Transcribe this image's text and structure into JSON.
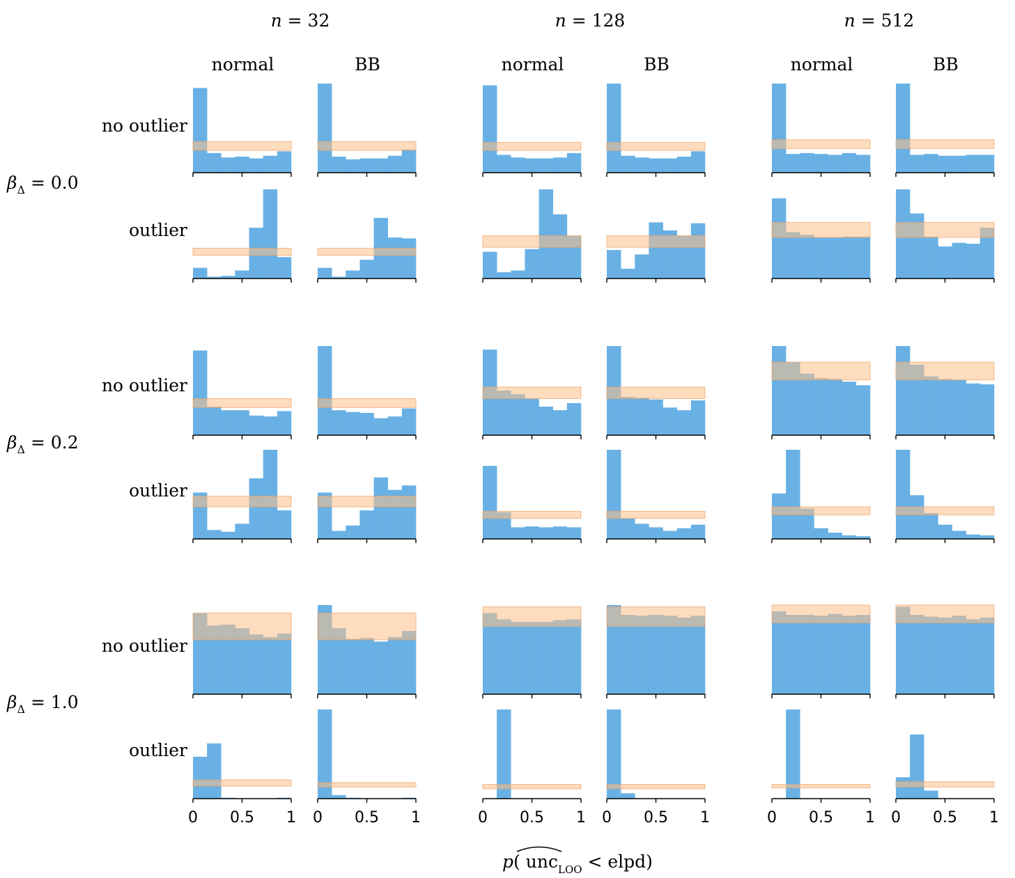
{
  "chart_data": {
    "type": "bar",
    "xlabel": {
      "p": "p",
      "unc": "unc",
      "sub": "LOO",
      "rest": " < elpd)"
    },
    "x_ticks": [
      "0",
      "0.5",
      "1"
    ],
    "xlim": [
      0,
      1
    ],
    "bins": 7,
    "n_labels": [
      {
        "n": "n",
        "eq": " = 32"
      },
      {
        "n": "n",
        "eq": " = 128"
      },
      {
        "n": "n",
        "eq": " = 512"
      }
    ],
    "method_labels": [
      "normal",
      "BB",
      "normal",
      "BB",
      "normal",
      "BB"
    ],
    "beta_labels": [
      {
        "beta": "β",
        "sub": "Δ",
        "eq": " = 0.0"
      },
      {
        "beta": "β",
        "sub": "Δ",
        "eq": " = 0.2"
      },
      {
        "beta": "β",
        "sub": "Δ",
        "eq": " = 1.0"
      }
    ],
    "row_labels": [
      "no outlier",
      "outlier",
      "no outlier",
      "outlier",
      "no outlier",
      "outlier"
    ],
    "colors": {
      "bar": "#4fa3e1",
      "band": "#fdbf88",
      "axis": "#000000"
    },
    "y_max": 1,
    "panels": [
      [
        {
          "values": [
            0.95,
            0.22,
            0.17,
            0.18,
            0.16,
            0.19,
            0.24
          ],
          "band": [
            0.25,
            0.35
          ]
        },
        {
          "values": [
            1.0,
            0.18,
            0.15,
            0.16,
            0.16,
            0.19,
            0.26
          ],
          "band": [
            0.25,
            0.35
          ]
        },
        {
          "values": [
            0.98,
            0.2,
            0.17,
            0.16,
            0.16,
            0.17,
            0.22
          ],
          "band": [
            0.25,
            0.34
          ]
        },
        {
          "values": [
            1.0,
            0.19,
            0.17,
            0.16,
            0.16,
            0.18,
            0.24
          ],
          "band": [
            0.25,
            0.34
          ]
        },
        {
          "values": [
            1.0,
            0.21,
            0.22,
            0.21,
            0.2,
            0.22,
            0.2
          ],
          "band": [
            0.27,
            0.37
          ]
        },
        {
          "values": [
            1.0,
            0.2,
            0.21,
            0.19,
            0.19,
            0.2,
            0.2
          ],
          "band": [
            0.27,
            0.37
          ]
        }
      ],
      [
        {
          "values": [
            0.12,
            0.02,
            0.03,
            0.09,
            0.57,
            1.0,
            0.24
          ],
          "band": [
            0.26,
            0.34
          ]
        },
        {
          "values": [
            0.12,
            0.02,
            0.09,
            0.21,
            0.68,
            0.46,
            0.45
          ],
          "band": [
            0.26,
            0.34
          ]
        },
        {
          "values": [
            0.3,
            0.07,
            0.09,
            0.33,
            1.0,
            0.72,
            0.48
          ],
          "band": [
            0.35,
            0.48
          ]
        },
        {
          "values": [
            0.32,
            0.11,
            0.27,
            0.63,
            0.54,
            0.48,
            0.62
          ],
          "band": [
            0.35,
            0.48
          ]
        },
        {
          "values": [
            0.9,
            0.52,
            0.49,
            0.46,
            0.46,
            0.47,
            0.47
          ],
          "band": [
            0.46,
            0.63
          ]
        },
        {
          "values": [
            1.0,
            0.73,
            0.47,
            0.36,
            0.4,
            0.39,
            0.57
          ],
          "band": [
            0.46,
            0.63
          ]
        }
      ],
      [
        {
          "values": [
            0.95,
            0.32,
            0.28,
            0.28,
            0.22,
            0.21,
            0.27
          ],
          "band": [
            0.31,
            0.41
          ]
        },
        {
          "values": [
            1.0,
            0.28,
            0.26,
            0.25,
            0.19,
            0.21,
            0.3
          ],
          "band": [
            0.31,
            0.41
          ]
        },
        {
          "values": [
            0.96,
            0.5,
            0.46,
            0.41,
            0.32,
            0.28,
            0.36
          ],
          "band": [
            0.41,
            0.54
          ]
        },
        {
          "values": [
            1.0,
            0.43,
            0.42,
            0.4,
            0.31,
            0.28,
            0.39
          ],
          "band": [
            0.41,
            0.54
          ]
        },
        {
          "values": [
            1.0,
            0.82,
            0.69,
            0.64,
            0.63,
            0.6,
            0.56
          ],
          "band": [
            0.62,
            0.82
          ]
        },
        {
          "values": [
            1.0,
            0.79,
            0.66,
            0.63,
            0.62,
            0.58,
            0.57
          ],
          "band": [
            0.62,
            0.82
          ]
        }
      ],
      [
        {
          "values": [
            0.52,
            0.1,
            0.08,
            0.17,
            0.68,
            1.0,
            0.32
          ],
          "band": [
            0.36,
            0.48
          ]
        },
        {
          "values": [
            0.52,
            0.09,
            0.15,
            0.32,
            0.69,
            0.55,
            0.6
          ],
          "band": [
            0.36,
            0.48
          ]
        },
        {
          "values": [
            0.82,
            0.3,
            0.13,
            0.14,
            0.13,
            0.14,
            0.13
          ],
          "band": [
            0.23,
            0.31
          ]
        },
        {
          "values": [
            1.0,
            0.23,
            0.17,
            0.13,
            0.09,
            0.12,
            0.16
          ],
          "band": [
            0.23,
            0.31
          ]
        },
        {
          "values": [
            0.51,
            1.0,
            0.34,
            0.12,
            0.07,
            0.04,
            0.03
          ],
          "band": [
            0.27,
            0.36
          ]
        },
        {
          "values": [
            1.0,
            0.49,
            0.29,
            0.16,
            0.09,
            0.05,
            0.04
          ],
          "band": [
            0.27,
            0.36
          ]
        }
      ],
      [
        {
          "values": [
            0.91,
            0.77,
            0.78,
            0.74,
            0.67,
            0.64,
            0.68
          ],
          "band": [
            0.61,
            0.91
          ]
        },
        {
          "values": [
            1.0,
            0.74,
            0.62,
            0.63,
            0.59,
            0.64,
            0.71
          ],
          "band": [
            0.61,
            0.91
          ]
        },
        {
          "values": [
            0.91,
            0.84,
            0.81,
            0.81,
            0.81,
            0.83,
            0.84
          ],
          "band": [
            0.76,
            0.98
          ]
        },
        {
          "values": [
            1.0,
            0.89,
            0.88,
            0.89,
            0.88,
            0.86,
            0.88
          ],
          "band": [
            0.76,
            0.98
          ]
        },
        {
          "values": [
            0.93,
            0.89,
            0.89,
            0.88,
            0.9,
            0.88,
            0.89
          ],
          "band": [
            0.8,
            1.0
          ]
        },
        {
          "values": [
            0.98,
            0.89,
            0.87,
            0.86,
            0.88,
            0.84,
            0.86
          ],
          "band": [
            0.8,
            1.0
          ]
        }
      ],
      [
        {
          "values": [
            0.47,
            0.62,
            0.01,
            0.0,
            0.0,
            0.0,
            0.01
          ],
          "band": [
            0.14,
            0.21
          ]
        },
        {
          "values": [
            1.0,
            0.04,
            0.01,
            0.0,
            0.0,
            0.0,
            0.01
          ],
          "band": [
            0.13,
            0.18
          ]
        },
        {
          "values": [
            0.0,
            1.0,
            0.0,
            0.0,
            0.0,
            0.0,
            0.0
          ],
          "band": [
            0.11,
            0.16
          ]
        },
        {
          "values": [
            1.0,
            0.06,
            0.0,
            0.0,
            0.0,
            0.0,
            0.0
          ],
          "band": [
            0.11,
            0.16
          ]
        },
        {
          "values": [
            0.0,
            1.0,
            0.0,
            0.0,
            0.0,
            0.0,
            0.0
          ],
          "band": [
            0.12,
            0.16
          ]
        },
        {
          "values": [
            0.24,
            0.72,
            0.09,
            0.0,
            0.0,
            0.0,
            0.0
          ],
          "band": [
            0.13,
            0.19
          ]
        }
      ]
    ]
  }
}
